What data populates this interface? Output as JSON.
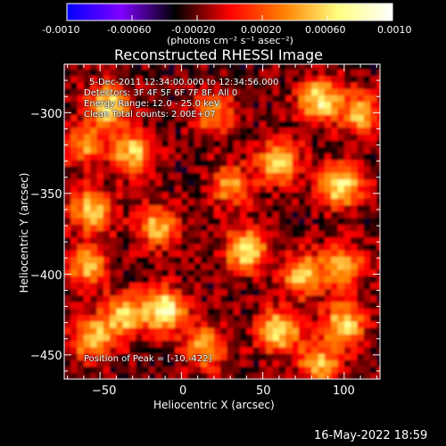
{
  "colorbar": {
    "ticks": [
      "-0.0010",
      "-0.00060",
      "-0.00020",
      "0.00020",
      "0.00060",
      "0.0010"
    ],
    "tick_values": [
      -0.001,
      -0.0006,
      -0.0002,
      0.0002,
      0.0006,
      0.001
    ],
    "range": [
      -0.001,
      0.001
    ],
    "unit_label": "(photons cm⁻² s⁻¹ asec⁻²)",
    "colors": [
      "#0000ff",
      "#8000ff",
      "#000000",
      "#ff0000",
      "#ff8000",
      "#ffff80",
      "#ffffff"
    ]
  },
  "chart_data": {
    "type": "heatmap",
    "title": "Reconstructed RHESSI Image",
    "xlabel": "Heliocentric X (arcsec)",
    "ylabel": "Heliocentric Y (arcsec)",
    "xlim": [
      -72,
      122
    ],
    "ylim": [
      -465,
      -270
    ],
    "xticks": [
      -50,
      0,
      50,
      100
    ],
    "yticks": [
      -300,
      -350,
      -400,
      -450
    ],
    "xtick_labels": [
      "−50",
      "0",
      "50",
      "100"
    ],
    "ytick_labels": [
      "−300",
      "−350",
      "−400",
      "−450"
    ],
    "annotations": {
      "time": "5-Dec-2011 12:34:00.000 to 12:34:56.000",
      "detectors": "Detectors: 3F 4F 5F 6F 7F 8F, All 0",
      "energy": "Energy Range: 12.0 - 25.0 keV",
      "clean": "Clean      Total counts: 2.00E+07",
      "peak": "Position of Peak = [-10,-422]"
    },
    "peak_position": [
      -10,
      -422
    ],
    "hotspots": [
      {
        "x": -45,
        "y": -295,
        "amplitude": 0.0009
      },
      {
        "x": -30,
        "y": -325,
        "amplitude": 0.0008
      },
      {
        "x": 85,
        "y": -292,
        "amplitude": 0.0009
      },
      {
        "x": 60,
        "y": -330,
        "amplitude": 0.0008
      },
      {
        "x": 98,
        "y": -345,
        "amplitude": 0.0009
      },
      {
        "x": 110,
        "y": -300,
        "amplitude": 0.0007
      },
      {
        "x": -55,
        "y": -360,
        "amplitude": 0.0008
      },
      {
        "x": -58,
        "y": -395,
        "amplitude": 0.0007
      },
      {
        "x": 40,
        "y": -385,
        "amplitude": 0.0009
      },
      {
        "x": 75,
        "y": -400,
        "amplitude": 0.0008
      },
      {
        "x": 100,
        "y": -395,
        "amplitude": 0.0007
      },
      {
        "x": -15,
        "y": -370,
        "amplitude": 0.0007
      },
      {
        "x": -10,
        "y": -422,
        "amplitude": 0.001
      },
      {
        "x": -35,
        "y": -425,
        "amplitude": 0.0008
      },
      {
        "x": -55,
        "y": -440,
        "amplitude": 0.0008
      },
      {
        "x": 15,
        "y": -445,
        "amplitude": 0.0007
      },
      {
        "x": 60,
        "y": -435,
        "amplitude": 0.0009
      },
      {
        "x": 100,
        "y": -430,
        "amplitude": 0.0008
      },
      {
        "x": 85,
        "y": -455,
        "amplitude": 0.0007
      },
      {
        "x": 20,
        "y": -300,
        "amplitude": 0.0006
      },
      {
        "x": 30,
        "y": -345,
        "amplitude": 0.0006
      },
      {
        "x": -60,
        "y": -320,
        "amplitude": 0.0006
      }
    ]
  },
  "timestamp": "16-May-2022 18:59"
}
